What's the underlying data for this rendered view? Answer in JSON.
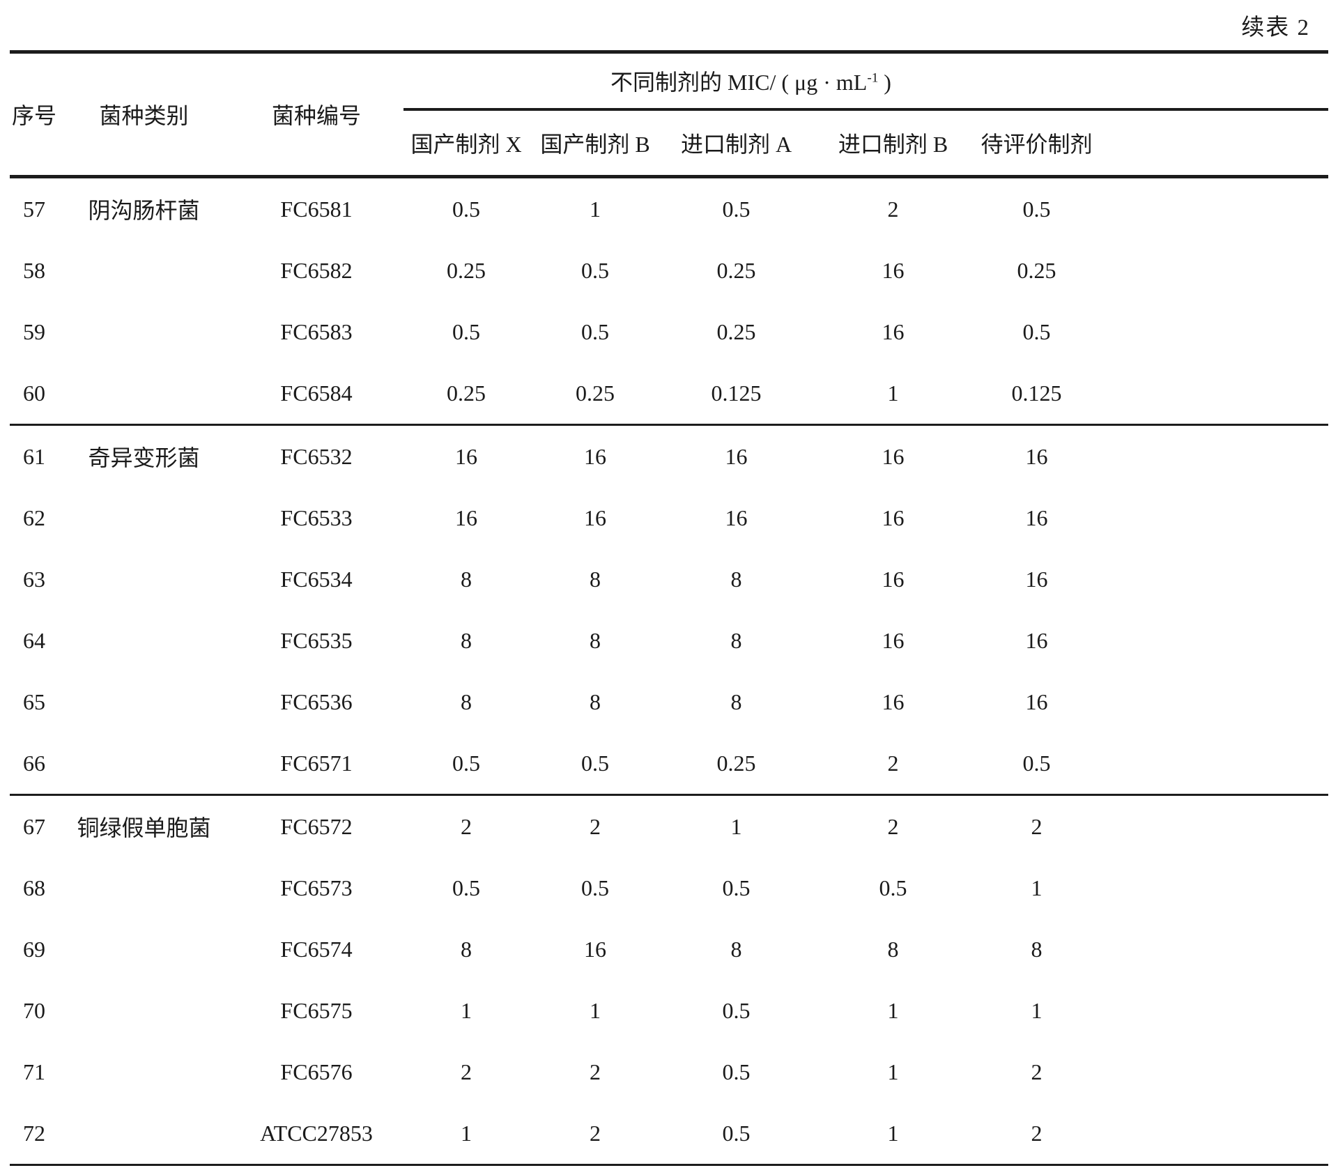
{
  "page": {
    "continued_label": "续表 2"
  },
  "table": {
    "columns": {
      "no": "序号",
      "species": "菌种类别",
      "code": "菌种编号"
    },
    "mic_header": {
      "prefix": "不同制剂的 MIC/ ( μg · mL",
      "sup": "-1",
      "suffix": " )"
    },
    "sub_columns": [
      "国产制剂 X",
      "国产制剂 B",
      "进口制剂 A",
      "进口制剂 B",
      "待评价制剂"
    ],
    "rows": [
      {
        "no": "57",
        "species": "阴沟肠杆菌",
        "code": "FC6581",
        "values": [
          "0.5",
          "1",
          "0.5",
          "2",
          "0.5"
        ]
      },
      {
        "no": "58",
        "species": "",
        "code": "FC6582",
        "values": [
          "0.25",
          "0.5",
          "0.25",
          "16",
          "0.25"
        ]
      },
      {
        "no": "59",
        "species": "",
        "code": "FC6583",
        "values": [
          "0.5",
          "0.5",
          "0.25",
          "16",
          "0.5"
        ]
      },
      {
        "no": "60",
        "species": "",
        "code": "FC6584",
        "values": [
          "0.25",
          "0.25",
          "0.125",
          "1",
          "0.125"
        ]
      },
      {
        "no": "61",
        "species": "奇异变形菌",
        "code": "FC6532",
        "values": [
          "16",
          "16",
          "16",
          "16",
          "16"
        ]
      },
      {
        "no": "62",
        "species": "",
        "code": "FC6533",
        "values": [
          "16",
          "16",
          "16",
          "16",
          "16"
        ]
      },
      {
        "no": "63",
        "species": "",
        "code": "FC6534",
        "values": [
          "8",
          "8",
          "8",
          "16",
          "16"
        ]
      },
      {
        "no": "64",
        "species": "",
        "code": "FC6535",
        "values": [
          "8",
          "8",
          "8",
          "16",
          "16"
        ]
      },
      {
        "no": "65",
        "species": "",
        "code": "FC6536",
        "values": [
          "8",
          "8",
          "8",
          "16",
          "16"
        ]
      },
      {
        "no": "66",
        "species": "",
        "code": "FC6571",
        "values": [
          "0.5",
          "0.5",
          "0.25",
          "2",
          "0.5"
        ]
      },
      {
        "no": "67",
        "species": "铜绿假单胞菌",
        "code": "FC6572",
        "values": [
          "2",
          "2",
          "1",
          "2",
          "2"
        ]
      },
      {
        "no": "68",
        "species": "",
        "code": "FC6573",
        "values": [
          "0.5",
          "0.5",
          "0.5",
          "0.5",
          "1"
        ]
      },
      {
        "no": "69",
        "species": "",
        "code": "FC6574",
        "values": [
          "8",
          "16",
          "8",
          "8",
          "8"
        ]
      },
      {
        "no": "70",
        "species": "",
        "code": "FC6575",
        "values": [
          "1",
          "1",
          "0.5",
          "1",
          "1"
        ]
      },
      {
        "no": "71",
        "species": "",
        "code": "FC6576",
        "values": [
          "2",
          "2",
          "0.5",
          "1",
          "2"
        ]
      },
      {
        "no": "72",
        "species": "",
        "code": "ATCC27853",
        "values": [
          "1",
          "2",
          "0.5",
          "1",
          "2"
        ]
      }
    ]
  }
}
